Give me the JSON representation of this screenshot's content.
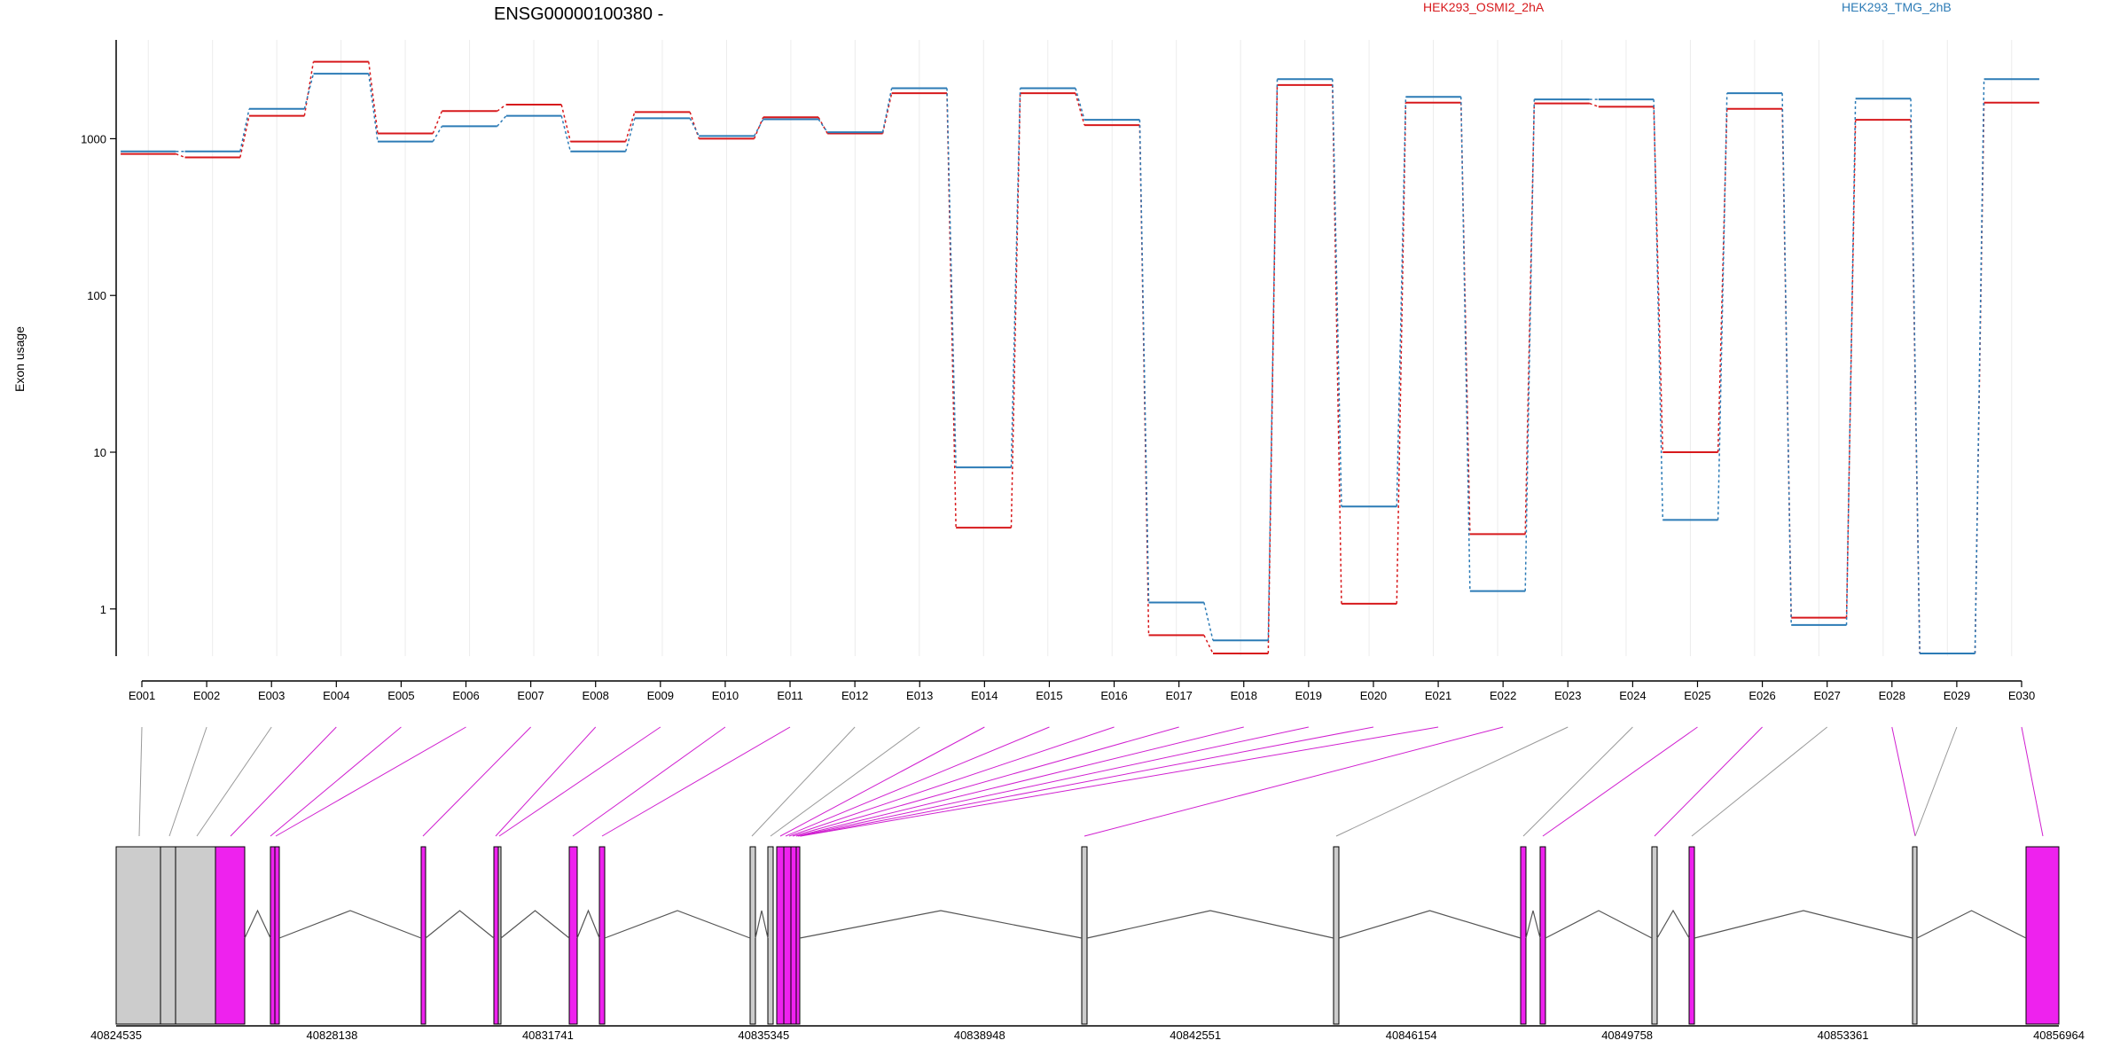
{
  "chart_data": {
    "type": "line",
    "title": "ENSG00000100380 -",
    "ylabel": "Exon usage",
    "xlabel": "",
    "y_scale": "log",
    "ylim": [
      0.5,
      4000
    ],
    "y_ticks": [
      1,
      10,
      100,
      1000
    ],
    "y_tick_labels": [
      "1",
      "10",
      "100",
      "1000"
    ],
    "categories": [
      "E001",
      "E002",
      "E003",
      "E004",
      "E005",
      "E006",
      "E007",
      "E008",
      "E009",
      "E010",
      "E011",
      "E012",
      "E013",
      "E014",
      "E015",
      "E016",
      "E017",
      "E018",
      "E019",
      "E020",
      "E021",
      "E022",
      "E023",
      "E024",
      "E025",
      "E026",
      "E027",
      "E028",
      "E029",
      "E030"
    ],
    "legend_placement": "top",
    "grid": "vertical",
    "series": [
      {
        "name": "HEK293_OSMI2_2hA",
        "color": "#d7191c",
        "values": [
          800,
          760,
          1400,
          3100,
          1080,
          1500,
          1650,
          960,
          1480,
          1000,
          1370,
          1080,
          1950,
          3.3,
          1950,
          1220,
          0.68,
          0.52,
          2200,
          1.08,
          1700,
          3.0,
          1680,
          1600,
          10.0,
          1550,
          0.88,
          1320,
          0.52,
          1700
        ]
      },
      {
        "name": "HEK293_TMG_2hB",
        "color": "#2c7bb6",
        "values": [
          830,
          830,
          1550,
          2600,
          960,
          1200,
          1400,
          830,
          1350,
          1040,
          1330,
          1100,
          2100,
          8.0,
          2100,
          1320,
          1.1,
          0.63,
          2400,
          4.5,
          1850,
          1.3,
          1780,
          1780,
          3.7,
          1950,
          0.79,
          1800,
          0.52,
          2400
        ]
      }
    ],
    "exon_connector_colors": [
      "#999999",
      "#999999",
      "#999999",
      "#d01fd0",
      "#d01fd0",
      "#d01fd0",
      "#d01fd0",
      "#d01fd0",
      "#d01fd0",
      "#d01fd0",
      "#d01fd0",
      "#999999",
      "#999999",
      "#d01fd0",
      "#d01fd0",
      "#d01fd0",
      "#d01fd0",
      "#d01fd0",
      "#d01fd0",
      "#d01fd0",
      "#d01fd0",
      "#d01fd0",
      "#999999",
      "#999999",
      "#d01fd0",
      "#d01fd0",
      "#999999",
      "#d01fd0",
      "#999999",
      "#d01fd0"
    ],
    "gene_model": {
      "coordinate_range": [
        40824535,
        40856964
      ],
      "axis_tick_labels": [
        "40824535",
        "40828138",
        "40831741",
        "40835345",
        "40838948",
        "40842551",
        "40846154",
        "40849758",
        "40853361",
        "40856964"
      ],
      "exon_fill_highlight": "#ee22ee",
      "exon_fill_normal": "#cccccc"
    }
  }
}
